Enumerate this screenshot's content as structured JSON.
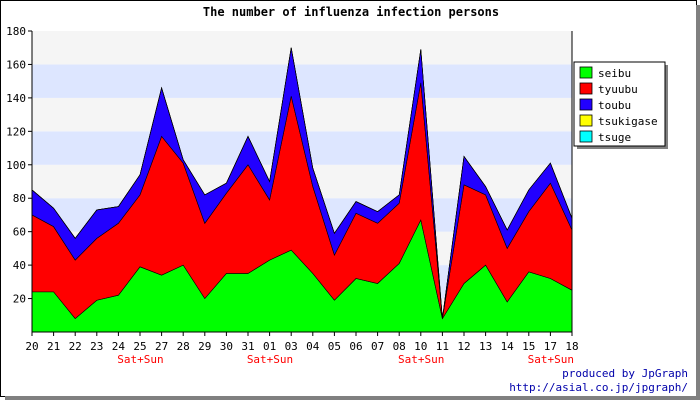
{
  "chart_data": {
    "type": "area",
    "title": "The number of influenza infection persons",
    "categories": [
      "20",
      "21",
      "22",
      "23",
      "24",
      "25",
      "27",
      "28",
      "29",
      "30",
      "31",
      "01",
      "03",
      "04",
      "05",
      "06",
      "07",
      "08",
      "10",
      "11",
      "12",
      "13",
      "14",
      "15",
      "17",
      "18"
    ],
    "weekend_notes": [
      {
        "category": "24",
        "text": "Sat+Sun"
      },
      {
        "category": "31",
        "text": "Sat+Sun"
      },
      {
        "category": "08",
        "text": "Sat+Sun"
      },
      {
        "category": "15",
        "text": "Sat+Sun"
      }
    ],
    "ylim": [
      0,
      180
    ],
    "yticks": [
      20,
      40,
      60,
      80,
      100,
      120,
      140,
      160,
      180
    ],
    "stacked": true,
    "series": [
      {
        "name": "seibu",
        "color": "#00ff00",
        "values": [
          24,
          24,
          8,
          19,
          22,
          39,
          34,
          40,
          20,
          35,
          35,
          43,
          49,
          35,
          19,
          32,
          29,
          41,
          67,
          8,
          29,
          40,
          18,
          36,
          32,
          25
        ]
      },
      {
        "name": "tyuubu",
        "color": "#ff0000",
        "values": [
          46,
          39,
          35,
          37,
          43,
          43,
          83,
          61,
          45,
          48,
          65,
          36,
          92,
          52,
          27,
          39,
          36,
          36,
          82,
          0,
          59,
          42,
          32,
          36,
          57,
          36
        ]
      },
      {
        "name": "toubu",
        "color": "#2200ff",
        "values": [
          15,
          11,
          13,
          17,
          10,
          12,
          29,
          2,
          17,
          6,
          17,
          11,
          29,
          11,
          13,
          7,
          7,
          5,
          20,
          0,
          17,
          5,
          11,
          13,
          12,
          7
        ]
      },
      {
        "name": "tsukigase",
        "color": "#ffff00",
        "values": [
          0,
          0,
          0,
          0,
          0,
          0,
          0,
          0,
          0,
          0,
          0,
          0,
          0,
          0,
          0,
          0,
          0,
          0,
          0,
          0,
          0,
          0,
          0,
          0,
          0,
          0
        ]
      },
      {
        "name": "tsuge",
        "color": "#00ffff",
        "values": [
          0,
          0,
          0,
          0,
          0,
          0,
          0,
          0,
          0,
          0,
          0,
          0,
          0,
          0,
          0,
          0,
          0,
          0,
          0,
          0,
          0,
          0,
          0,
          0,
          0,
          0
        ]
      }
    ],
    "grid": true,
    "legend_position": "right",
    "band_colors": [
      "#f5f5f5",
      "#dde6ff"
    ],
    "weekend_color": "#ff0000"
  },
  "footer": {
    "line1": "produced by JpGraph",
    "line2": "http://asial.co.jp/jpgraph/"
  }
}
